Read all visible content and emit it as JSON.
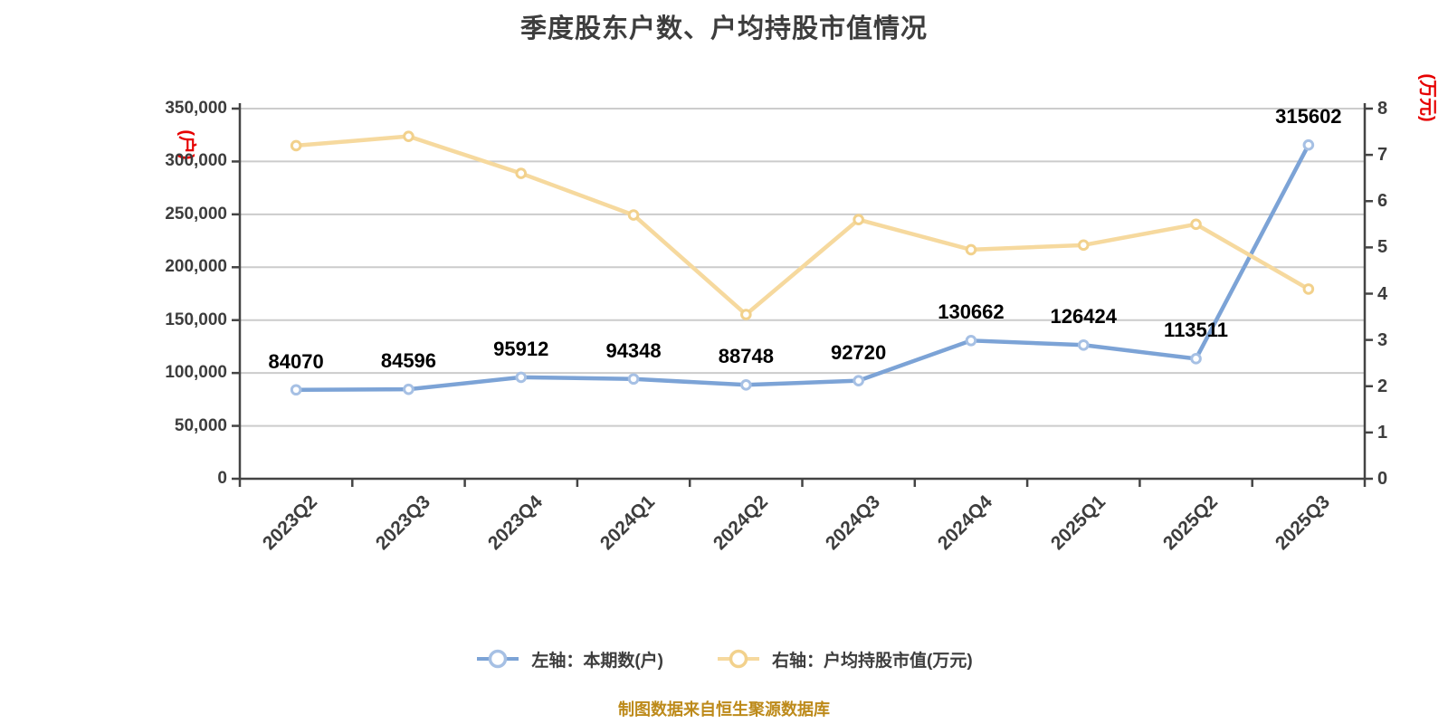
{
  "chart_data": {
    "type": "line",
    "title": "季度股东户数、户均持股市值情况",
    "categories": [
      "2023Q2",
      "2023Q3",
      "2023Q4",
      "2024Q1",
      "2024Q2",
      "2024Q3",
      "2024Q4",
      "2025Q1",
      "2025Q2",
      "2025Q3"
    ],
    "series": [
      {
        "name": "左轴：本期数(户)",
        "axis": "left",
        "color": "#7ca3d6",
        "marker_ring": "#a6c0e4",
        "values": [
          84070,
          84596,
          95912,
          94348,
          88748,
          92720,
          130662,
          126424,
          113511,
          315602
        ],
        "data_labels": true
      },
      {
        "name": "右轴：户均持股市值(万元)",
        "axis": "right",
        "color": "#f6d99e",
        "marker_ring": "#f2d18c",
        "values": [
          7.2,
          7.4,
          6.6,
          5.7,
          3.55,
          5.6,
          4.95,
          5.05,
          5.5,
          4.1
        ],
        "data_labels": false
      }
    ],
    "legend": [
      {
        "label": "左轴：本期数(户)",
        "color": "#7ca3d6",
        "ring": "#a6c0e4"
      },
      {
        "label": "右轴：户均持股市值(万元)",
        "color": "#f6d99e",
        "ring": "#f2d18c"
      }
    ],
    "left_axis": {
      "unit": "(户)",
      "min": 0,
      "max": 350000,
      "step": 50000,
      "tick_labels": [
        "0",
        "50,000",
        "100,000",
        "150,000",
        "200,000",
        "250,000",
        "300,000",
        "350,000"
      ]
    },
    "right_axis": {
      "unit": "(万元)",
      "min": 0,
      "max": 8,
      "step": 1,
      "tick_labels": [
        "0",
        "1",
        "2",
        "3",
        "4",
        "5",
        "6",
        "7",
        "8"
      ]
    },
    "grid": true,
    "legend_position": "bottom",
    "x_label_rotate": 45
  },
  "caption": "制图数据来自恒生聚源数据库",
  "colors": {
    "background": "#ffffff",
    "grid": "#cccccc",
    "axis": "#444444",
    "text": "#3d3d3d",
    "data_label": "#000000",
    "unit_label": "#e60000",
    "caption": "#bd8a1a"
  }
}
